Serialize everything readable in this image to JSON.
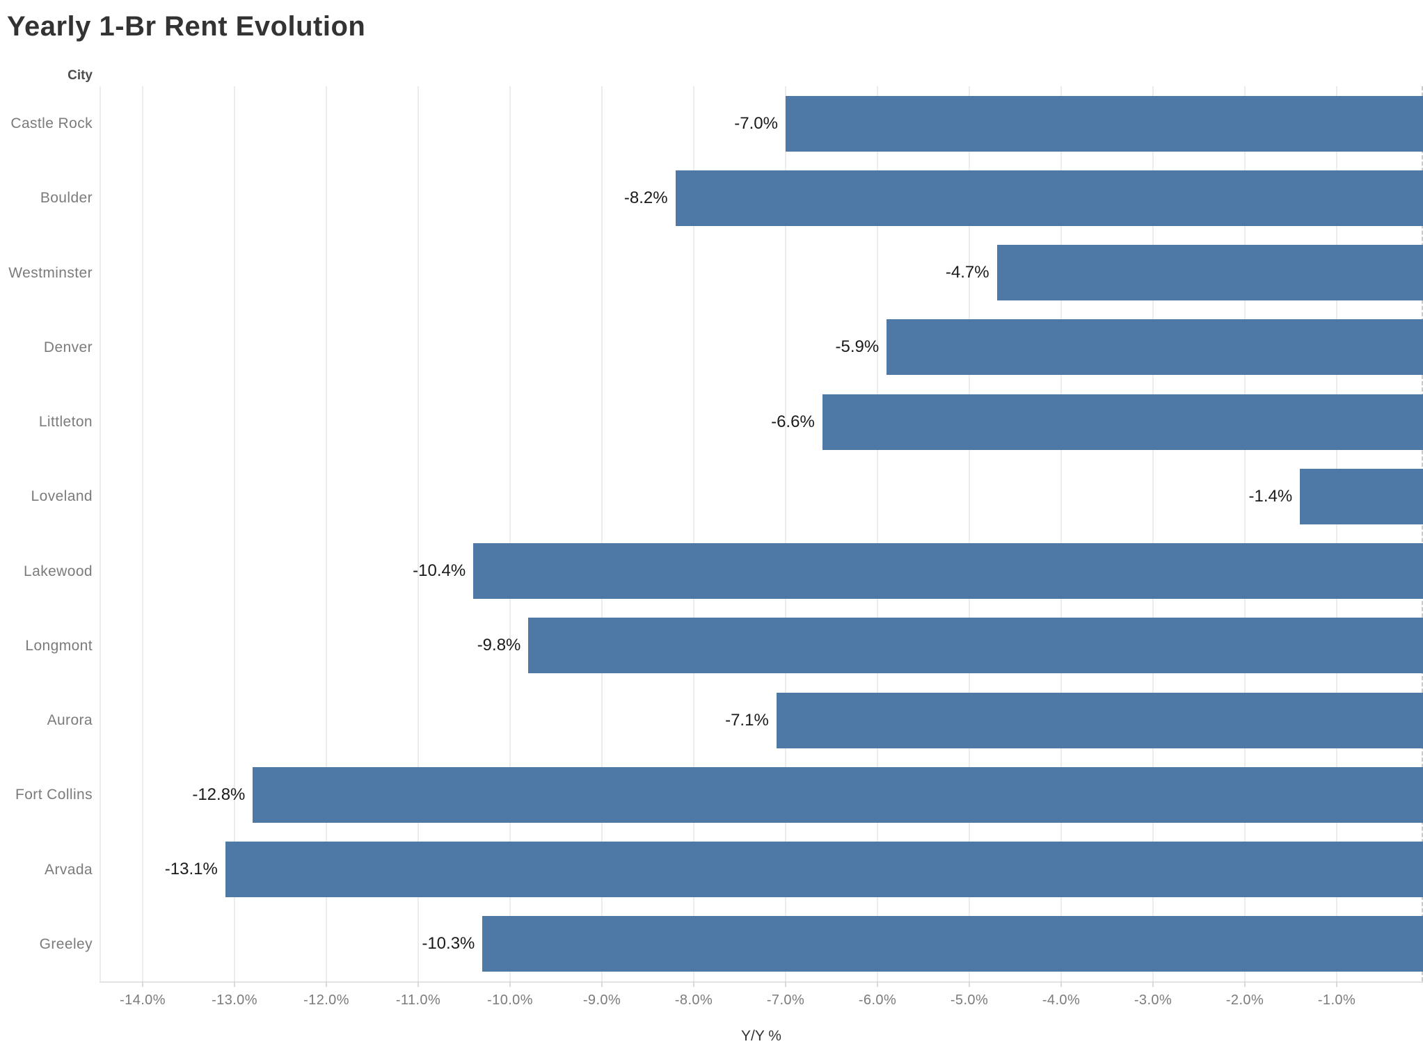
{
  "chart_data": {
    "type": "bar",
    "orientation": "horizontal",
    "title": "Yearly 1-Br Rent Evolution",
    "xlabel": "Y/Y %",
    "ylabel": "City",
    "xlim": [
      -14.47,
      0
    ],
    "grid": true,
    "legend": null,
    "categories": [
      "Castle Rock",
      "Boulder",
      "Westminster",
      "Denver",
      "Littleton",
      "Loveland",
      "Lakewood",
      "Longmont",
      "Aurora",
      "Fort Collins",
      "Arvada",
      "Greeley"
    ],
    "values": [
      -7.0,
      -8.2,
      -4.7,
      -5.9,
      -6.6,
      -1.4,
      -10.4,
      -9.8,
      -7.1,
      -12.8,
      -13.1,
      -10.3
    ],
    "value_labels": [
      "-7.0%",
      "-8.2%",
      "-4.7%",
      "-5.9%",
      "-6.6%",
      "-1.4%",
      "-10.4%",
      "-9.8%",
      "-7.1%",
      "-12.8%",
      "-13.1%",
      "-10.3%"
    ],
    "x_ticks": [
      {
        "value": -14,
        "label": "-14.0%"
      },
      {
        "value": -13,
        "label": "-13.0%"
      },
      {
        "value": -12,
        "label": "-12.0%"
      },
      {
        "value": -11,
        "label": "-11.0%"
      },
      {
        "value": -10,
        "label": "-10.0%"
      },
      {
        "value": -9,
        "label": "-9.0%"
      },
      {
        "value": -8,
        "label": "-8.0%"
      },
      {
        "value": -7,
        "label": "-7.0%"
      },
      {
        "value": -6,
        "label": "-6.0%"
      },
      {
        "value": -5,
        "label": "-5.0%"
      },
      {
        "value": -4,
        "label": "-4.0%"
      },
      {
        "value": -3,
        "label": "-3.0%"
      },
      {
        "value": -2,
        "label": "-2.0%"
      },
      {
        "value": -1,
        "label": "-1.0%"
      }
    ]
  },
  "colors": {
    "bar": "#4e79a7",
    "gridline": "#ececec",
    "axis_line": "#e2e2e2",
    "tick_mark": "#d9d9d9",
    "clip_line": "#c9c9c9",
    "title_text": "#333333",
    "axis_text": "#7b7b7b",
    "value_label_text": "#1a1a1a",
    "header_text": "#4d4d4d"
  }
}
